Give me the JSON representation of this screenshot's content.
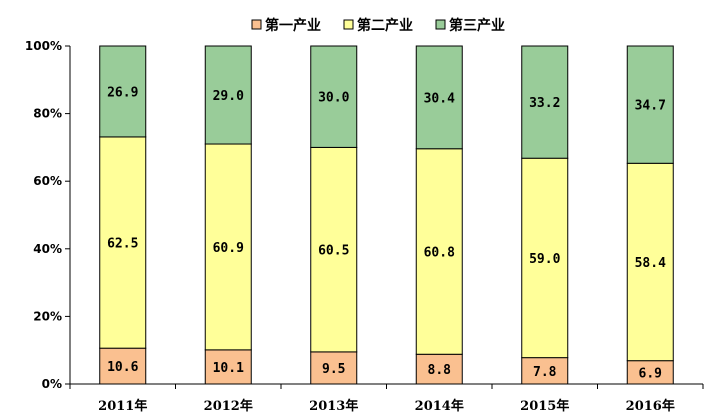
{
  "chart_data": {
    "type": "bar",
    "stacked": true,
    "percent_axis": true,
    "categories": [
      "2011年",
      "2012年",
      "2013年",
      "2014年",
      "2015年",
      "2016年"
    ],
    "series": [
      {
        "name": "第一产业",
        "color": "#FAC090",
        "values": [
          10.6,
          10.1,
          9.5,
          8.8,
          7.8,
          6.9
        ]
      },
      {
        "name": "第二产业",
        "color": "#FFFF99",
        "values": [
          62.5,
          60.9,
          60.5,
          60.8,
          59.0,
          58.4
        ]
      },
      {
        "name": "第三产业",
        "color": "#99CC99",
        "values": [
          26.9,
          29.0,
          30.0,
          30.4,
          33.2,
          34.7
        ]
      }
    ],
    "data_labels": {
      "第一产业": [
        "10.6",
        "10.1",
        "9.5",
        "8.8",
        "7.8",
        "6.9"
      ],
      "第二产业": [
        "62.5",
        "60.9",
        "60.5",
        "60.8",
        "59.0",
        "58.4"
      ],
      "第三产业": [
        "26.9",
        "29.0",
        "30.0",
        "30.4",
        "33.2",
        "34.7"
      ]
    },
    "y_ticks": [
      "0%",
      "20%",
      "40%",
      "60%",
      "80%",
      "100%"
    ],
    "y_tick_values": [
      0,
      20,
      40,
      60,
      80,
      100
    ],
    "ylim": [
      0,
      100
    ],
    "grid": false,
    "legend_position": "top"
  }
}
